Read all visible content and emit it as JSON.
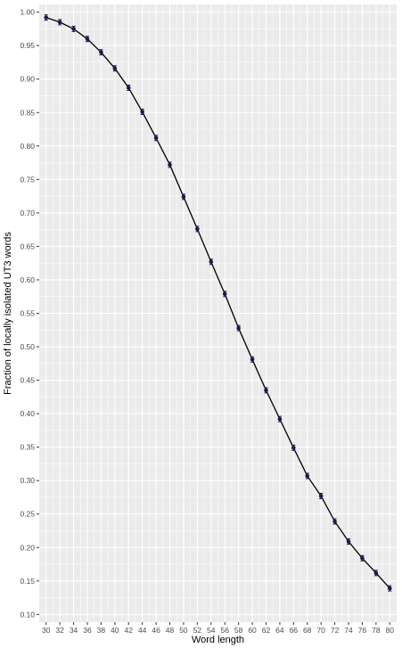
{
  "chart_data": {
    "type": "line",
    "title": "",
    "xlabel": "Word length",
    "ylabel": "Fraction of locally isolated UT3 words",
    "x": [
      30,
      32,
      34,
      36,
      38,
      40,
      42,
      44,
      46,
      48,
      50,
      52,
      54,
      56,
      58,
      60,
      62,
      64,
      66,
      68,
      70,
      72,
      74,
      76,
      78,
      80
    ],
    "series": [
      {
        "values": [
          0.992,
          0.985,
          0.975,
          0.96,
          0.94,
          0.916,
          0.887,
          0.851,
          0.812,
          0.772,
          0.724,
          0.676,
          0.627,
          0.579,
          0.528,
          0.481,
          0.435,
          0.392,
          0.349,
          0.307,
          0.277,
          0.239,
          0.209,
          0.184,
          0.162,
          0.139
        ]
      }
    ],
    "xticks": [
      "30",
      "32",
      "34",
      "36",
      "38",
      "40",
      "42",
      "44",
      "46",
      "48",
      "50",
      "52",
      "54",
      "56",
      "58",
      "60",
      "62",
      "64",
      "66",
      "68",
      "70",
      "72",
      "74",
      "76",
      "78",
      "80"
    ],
    "yticks": [
      "0.10",
      "0.15",
      "0.20",
      "0.25",
      "0.30",
      "0.35",
      "0.40",
      "0.45",
      "0.50",
      "0.55",
      "0.60",
      "0.65",
      "0.70",
      "0.75",
      "0.80",
      "0.85",
      "0.90",
      "0.95",
      "1.00"
    ],
    "xlim": [
      29,
      81
    ],
    "ylim": [
      0.1,
      1.0
    ],
    "grid": true,
    "legend": "none",
    "colors": {
      "panel_background": "#ebebeb",
      "grid_major": "#ffffff",
      "line": "#000000",
      "points": "#1a1a4e"
    }
  }
}
